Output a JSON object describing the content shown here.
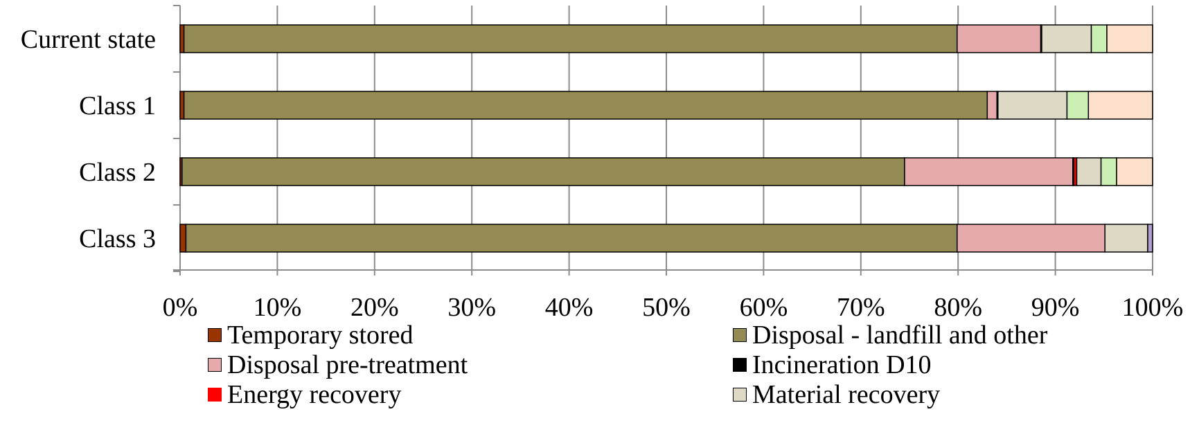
{
  "chart_data": {
    "type": "bar",
    "orientation": "horizontal",
    "stacked": "percent",
    "title": "",
    "xlabel": "",
    "ylabel": "",
    "xlim": [
      0,
      100
    ],
    "x_ticks": [
      "0%",
      "10%",
      "20%",
      "30%",
      "40%",
      "50%",
      "60%",
      "70%",
      "80%",
      "90%",
      "100%"
    ],
    "grid": "vertical",
    "legend_position": "bottom",
    "categories": [
      "Current state",
      "Class 1",
      "Class 2",
      "Class 3"
    ],
    "series": [
      {
        "name": "Temporary stored",
        "color": "#993300",
        "values": [
          0.4,
          0.4,
          0.2,
          0.6
        ]
      },
      {
        "name": "Disposal - landfill and other",
        "color": "#948A54",
        "values": [
          79.5,
          82.6,
          74.3,
          79.3
        ]
      },
      {
        "name": "Disposal pre-treatment",
        "color": "#E6A9AC",
        "values": [
          8.6,
          1.0,
          17.3,
          15.2
        ]
      },
      {
        "name": "Incineration D10",
        "color": "#000000",
        "values": [
          0.1,
          0.1,
          0.1,
          0.0
        ]
      },
      {
        "name": "Energy recovery",
        "color": "#FF0000",
        "values": [
          0.0,
          0.0,
          0.3,
          0.0
        ]
      },
      {
        "name": "Material recovery",
        "color": "#DDD9C4",
        "values": [
          5.1,
          7.1,
          2.5,
          4.4
        ]
      },
      {
        "name": "",
        "color": "#CCF0B4",
        "values": [
          1.6,
          2.2,
          1.6,
          0.0
        ]
      },
      {
        "name": "",
        "color": "#FCE0CC",
        "values": [
          4.7,
          6.6,
          3.7,
          0.0
        ]
      },
      {
        "name": "",
        "color": "#B0A0D0",
        "values": [
          0.0,
          0.0,
          0.0,
          0.5
        ]
      }
    ]
  }
}
